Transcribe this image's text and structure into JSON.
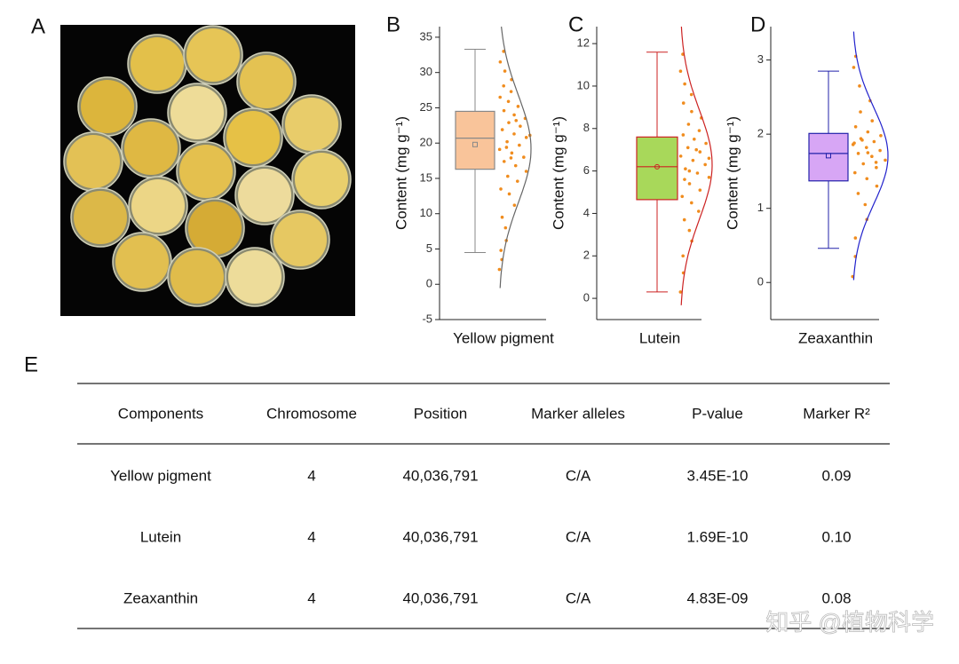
{
  "panel_labels": [
    "A",
    "B",
    "C",
    "D",
    "E"
  ],
  "chart_data": [
    {
      "type": "box",
      "ylabel": "Content (mg g⁻¹)",
      "categories": [
        "Yellow pigment"
      ],
      "ylim": [
        -5,
        36.5
      ],
      "yticks": [
        -5,
        0,
        5,
        10,
        15,
        20,
        25,
        30,
        35
      ],
      "box": {
        "min": 4.5,
        "q1": 16.3,
        "median": 20.7,
        "mean": 19.8,
        "q3": 24.5,
        "max": 33.3
      },
      "fill": "#f9c49a",
      "stroke": "#888888",
      "curve_color": "#666666",
      "point_color": "#f08c1e",
      "mean_marker": "square",
      "points": [
        2.1,
        3.5,
        4.8,
        6.2,
        8.0,
        9.5,
        11.2,
        12.8,
        13.5,
        14.6,
        15.3,
        16.0,
        16.8,
        17.4,
        18.0,
        18.6,
        19.1,
        19.7,
        20.2,
        20.8,
        21.3,
        21.9,
        22.4,
        22.9,
        23.5,
        24.0,
        24.6,
        25.2,
        25.9,
        26.5,
        27.3,
        28.1,
        29.0,
        30.2,
        31.5,
        33.0,
        17.9,
        21.1,
        23.2,
        19.4
      ]
    },
    {
      "type": "box",
      "ylabel": "Content (mg g⁻¹)",
      "categories": [
        "Lutein"
      ],
      "ylim": [
        -1,
        12.8
      ],
      "yticks": [
        0,
        2,
        4,
        6,
        8,
        10,
        12
      ],
      "box": {
        "min": 0.3,
        "q1": 4.65,
        "median": 6.2,
        "mean": 6.2,
        "q3": 7.6,
        "max": 11.6
      },
      "fill": "#a8d85a",
      "stroke": "#cc2222",
      "curve_color": "#cc2222",
      "point_color": "#f08c1e",
      "mean_marker": "circle",
      "points": [
        0.3,
        1.2,
        2.0,
        2.7,
        3.2,
        3.7,
        4.1,
        4.5,
        4.8,
        5.1,
        5.4,
        5.7,
        5.9,
        6.1,
        6.3,
        6.5,
        6.7,
        6.9,
        7.1,
        7.3,
        7.5,
        7.7,
        7.9,
        8.2,
        8.5,
        8.8,
        9.2,
        9.6,
        10.1,
        10.7,
        11.5,
        6.0,
        6.6,
        7.0,
        5.6
      ]
    },
    {
      "type": "box",
      "ylabel": "Content (mg g⁻¹)",
      "categories": [
        "Zeaxanthin"
      ],
      "ylim": [
        -0.5,
        3.45
      ],
      "yticks": [
        0,
        1,
        2,
        3
      ],
      "box": {
        "min": 0.46,
        "q1": 1.37,
        "median": 1.74,
        "mean": 1.71,
        "q3": 2.01,
        "max": 2.85
      },
      "fill": "#d7a6f5",
      "stroke": "#2222aa",
      "curve_color": "#2222cc",
      "point_color": "#f08c1e",
      "mean_marker": "square",
      "points": [
        0.08,
        0.35,
        0.6,
        0.85,
        1.05,
        1.2,
        1.3,
        1.4,
        1.48,
        1.55,
        1.6,
        1.65,
        1.7,
        1.74,
        1.78,
        1.82,
        1.86,
        1.9,
        1.94,
        1.98,
        2.03,
        2.1,
        2.18,
        2.3,
        2.45,
        2.65,
        2.9,
        3.05,
        1.75,
        1.88,
        1.62,
        1.92
      ]
    }
  ],
  "table": {
    "headers": [
      "Components",
      "Chromosome",
      "Position",
      "Marker alleles",
      "P-value",
      "Marker R²"
    ],
    "rows": [
      [
        "Yellow pigment",
        "4",
        "40,036,791",
        "C/A",
        "3.45E-10",
        "0.09"
      ],
      [
        "Lutein",
        "4",
        "40,036,791",
        "C/A",
        "1.69E-10",
        "0.10"
      ],
      [
        "Zeaxanthin",
        "4",
        "40,036,791",
        "C/A",
        "4.83E-09",
        "0.08"
      ]
    ]
  },
  "watermark": "知乎 @植物科学"
}
